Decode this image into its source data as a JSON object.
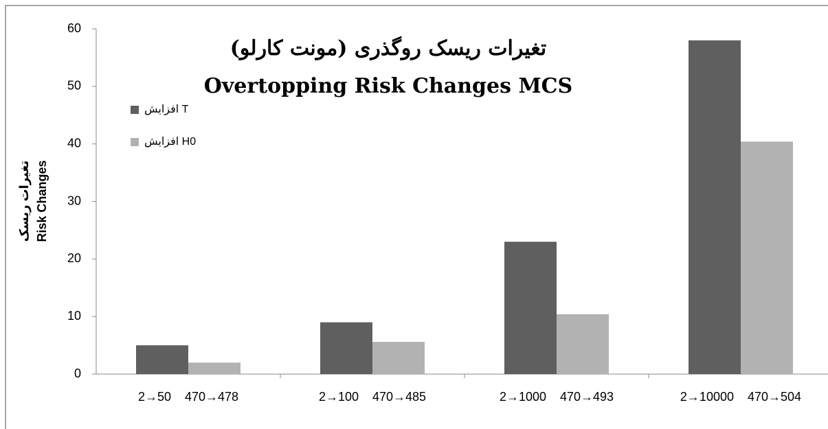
{
  "chart_data": {
    "type": "bar",
    "title": "تغیرات ریسک روگذری (مونت کارلو)",
    "subtitle": "Overtopping Risk Changes MCS",
    "y_label": [
      "تغیرات ریسک",
      "Risk Changes"
    ],
    "categories": [
      "2→50    470→478",
      "2→100    470→485",
      "2→1000    470→493",
      "2→10000    470→504"
    ],
    "series": [
      {
        "name": "افزایش T",
        "color": "#5f5f5f",
        "values": [
          5,
          9,
          23,
          58
        ]
      },
      {
        "name": "افزایش H0",
        "color": "#b2b2b2",
        "values": [
          2,
          5.6,
          10.4,
          40.4
        ]
      }
    ],
    "ylim": [
      0,
      60
    ],
    "yticks": [
      0,
      10,
      20,
      30,
      40,
      50,
      60
    ],
    "grid": false,
    "legend": "upper left"
  }
}
